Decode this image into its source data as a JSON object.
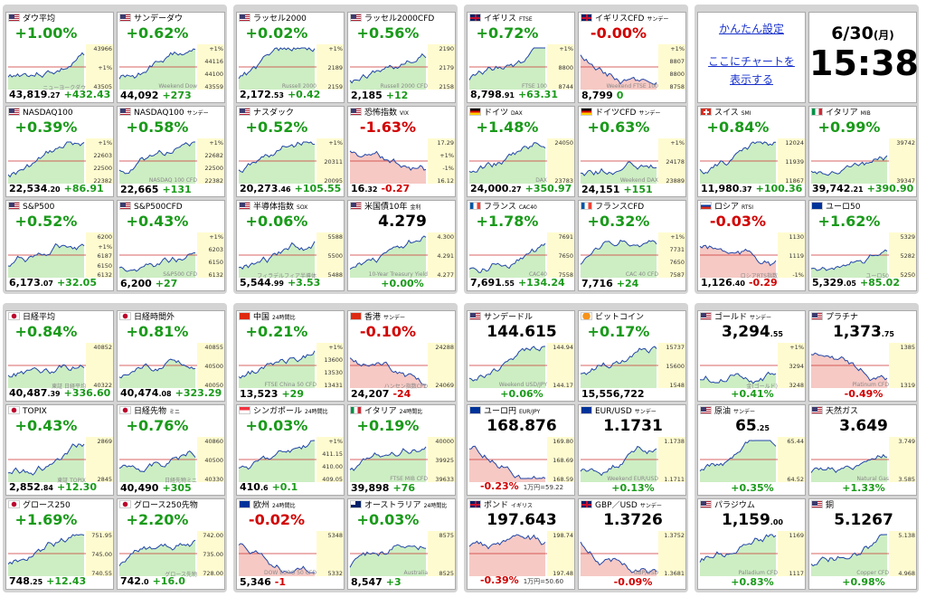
{
  "settings": {
    "easy": "かんたん設定",
    "chart": "ここにチャートを表示する"
  },
  "clock": {
    "date": "6/30(月)",
    "time": "15:38"
  },
  "panels": [
    {
      "tiles": [
        {
          "kind": "index",
          "flag": "us",
          "name": "ダウ平均",
          "change": "+1.00%",
          "axis": [
            "43966",
            "+1%",
            "43505"
          ],
          "wm": "ニューヨークダウ",
          "price": "43,819.27",
          "diff": "+432.43"
        },
        {
          "kind": "index",
          "flag": "us",
          "name": "サンデーダウ",
          "change": "+0.62%",
          "axis": [
            "+1%",
            "44116",
            "44100",
            "43559"
          ],
          "wm": "Weekend Dow",
          "price": "44,092",
          "diff": "+273"
        },
        {
          "kind": "index",
          "flag": "us",
          "name": "NASDAQ100",
          "change": "+0.39%",
          "axis": [
            "+1%",
            "22603",
            "22500",
            "22382"
          ],
          "price": "22,534.20",
          "diff": "+86.91"
        },
        {
          "kind": "index",
          "flag": "us",
          "name": "NASDAQ100",
          "sub": "サンデー",
          "change": "+0.58%",
          "axis": [
            "+1%",
            "22682",
            "22500",
            "22382"
          ],
          "wm": "NASDAQ 100 CFD",
          "price": "22,665",
          "diff": "+131"
        },
        {
          "kind": "index",
          "flag": "us",
          "name": "S&P500",
          "change": "+0.52%",
          "axis": [
            "6200",
            "+1%",
            "6187",
            "6150",
            "6132"
          ],
          "price": "6,173.07",
          "diff": "+32.05"
        },
        {
          "kind": "index",
          "flag": "us",
          "name": "S&P500CFD",
          "change": "+0.43%",
          "axis": [
            "+1%",
            "6203",
            "6150",
            "6132"
          ],
          "wm": "S&P500 CFD",
          "price": "6,200",
          "diff": "+27"
        }
      ]
    },
    {
      "tiles": [
        {
          "kind": "index",
          "flag": "us",
          "name": "ラッセル2000",
          "change": "+0.02%",
          "axis": [
            "+1%",
            "2189",
            "2159"
          ],
          "wm": "Russell 2000",
          "price": "2,172.53",
          "diff": "+0.42"
        },
        {
          "kind": "index",
          "flag": "us",
          "name": "ラッセル2000CFD",
          "change": "+0.56%",
          "axis": [
            "2190",
            "2179",
            "2158"
          ],
          "wm": "Russell 2000 CFD",
          "price": "2,185",
          "diff": "+12"
        },
        {
          "kind": "index",
          "flag": "us",
          "name": "ナスダック",
          "change": "+0.52%",
          "axis": [
            "+1%",
            "20311",
            "20095"
          ],
          "price": "20,273.46",
          "diff": "+105.55"
        },
        {
          "kind": "index",
          "flag": "us",
          "name": "恐怖指数",
          "sub": "VIX",
          "change": "-1.63%",
          "axis": [
            "17.29",
            "+1%",
            "-1%",
            "16.12"
          ],
          "price": "16.32",
          "diff": "-0.27"
        },
        {
          "kind": "index",
          "flag": "us",
          "name": "半導体指数",
          "sub": "SOX",
          "change": "+0.06%",
          "axis": [
            "5588",
            "5500",
            "5488"
          ],
          "wm": "フィラデルフィア半導体",
          "price": "5,544.99",
          "diff": "+3.53"
        },
        {
          "kind": "quote",
          "flag": "us",
          "name": "米国債10年",
          "sub": "金利",
          "value": "4.279",
          "axis": [
            "4.300",
            "4.291",
            "4.277"
          ],
          "wm": "10-Year Treasury Yield",
          "change": "+0.00%"
        }
      ]
    },
    {
      "tiles": [
        {
          "kind": "index",
          "flag": "uk",
          "name": "イギリス",
          "sub": "FTSE",
          "change": "+0.72%",
          "axis": [
            "+1%",
            "8800",
            "8744"
          ],
          "wm": "FTSE 100",
          "price": "8,798.91",
          "diff": "+63.31"
        },
        {
          "kind": "index",
          "flag": "uk",
          "name": "イギリスCFD",
          "sub": "サンデー",
          "change": "-0.00%",
          "axis": [
            "+1%",
            "8807",
            "8800",
            "8758"
          ],
          "wm": "Weekend FTSE 100",
          "price": "8,799",
          "diff": "0"
        },
        {
          "kind": "index",
          "flag": "de",
          "name": "ドイツ",
          "sub": "DAX",
          "change": "+1.48%",
          "axis": [
            "24050",
            "23783"
          ],
          "wm": "DAX",
          "price": "24,000.27",
          "diff": "+350.97"
        },
        {
          "kind": "index",
          "flag": "de",
          "name": "ドイツCFD",
          "sub": "サンデー",
          "change": "+0.63%",
          "axis": [
            "+1%",
            "24178",
            "23889"
          ],
          "wm": "Weekend DAX",
          "price": "24,151",
          "diff": "+151"
        },
        {
          "kind": "index",
          "flag": "fr",
          "name": "フランス",
          "sub": "CAC40",
          "change": "+1.78%",
          "axis": [
            "7691",
            "7650",
            "7558"
          ],
          "wm": "CAC40",
          "price": "7,691.55",
          "diff": "+134.24"
        },
        {
          "kind": "index",
          "flag": "fr",
          "name": "フランスCFD",
          "change": "+0.32%",
          "axis": [
            "+1%",
            "7731",
            "7650",
            "7587"
          ],
          "wm": "CAC 40 CFD",
          "price": "7,716",
          "diff": "+24"
        }
      ]
    },
    {
      "tiles": [
        {
          "kind": "index",
          "flag": "ch",
          "name": "スイス",
          "sub": "SMI",
          "change": "+0.84%",
          "axis": [
            "12024",
            "11939",
            "11867"
          ],
          "price": "11,980.37",
          "diff": "+100.36"
        },
        {
          "kind": "index",
          "flag": "it",
          "name": "イタリア",
          "sub": "MIB",
          "change": "+0.99%",
          "axis": [
            "39742",
            "39347"
          ],
          "price": "39,742.21",
          "diff": "+390.90"
        },
        {
          "kind": "index",
          "flag": "ru",
          "name": "ロシア",
          "sub": "RTSI",
          "change": "-0.03%",
          "axis": [
            "1130",
            "1119",
            "-1%"
          ],
          "wm": "ロシアRTS指数",
          "price": "1,126.40",
          "diff": "-0.29"
        },
        {
          "kind": "index",
          "flag": "eu",
          "name": "ユーロ50",
          "change": "+1.62%",
          "axis": [
            "5329",
            "5282",
            "5250"
          ],
          "wm": "ユーロ50",
          "price": "5,329.05",
          "diff": "+85.02"
        }
      ]
    },
    {
      "tiles": [
        {
          "kind": "index",
          "flag": "jp",
          "name": "日経平均",
          "change": "+0.84%",
          "axis": [
            "40852",
            "40322"
          ],
          "wm": "東証 日経平均",
          "price": "40,487.39",
          "diff": "+336.60"
        },
        {
          "kind": "index",
          "flag": "jp",
          "name": "日経時間外",
          "change": "+0.81%",
          "axis": [
            "40855",
            "40500",
            "40050"
          ],
          "price": "40,474.08",
          "diff": "+323.29"
        },
        {
          "kind": "index",
          "flag": "jp",
          "name": "TOPIX",
          "change": "+0.43%",
          "axis": [
            "2869",
            "2845"
          ],
          "wm": "東証 TOPIX",
          "price": "2,852.84",
          "diff": "+12.30"
        },
        {
          "kind": "index",
          "flag": "jp",
          "name": "日経先物",
          "sub": "ミニ",
          "change": "+0.76%",
          "axis": [
            "40860",
            "40500",
            "40330"
          ],
          "wm": "日経先物ミニ",
          "price": "40,490",
          "diff": "+305"
        },
        {
          "kind": "index",
          "flag": "jp",
          "name": "グロース250",
          "change": "+1.69%",
          "axis": [
            "751.95",
            "745.00",
            "740.55"
          ],
          "price": "748.25",
          "diff": "+12.43"
        },
        {
          "kind": "index",
          "flag": "jp",
          "name": "グロース250先物",
          "change": "+2.20%",
          "axis": [
            "742.00",
            "735.00",
            "728.00"
          ],
          "wm": "グロース先物",
          "price": "742.0",
          "diff": "+16.0"
        }
      ]
    },
    {
      "tiles": [
        {
          "kind": "index",
          "flag": "cn",
          "name": "中国",
          "sub": "24時間比",
          "change": "+0.21%",
          "axis": [
            "+1%",
            "13600",
            "13530",
            "13431"
          ],
          "wm": "FTSE China 50 CFD",
          "price": "13,523",
          "diff": "+29"
        },
        {
          "kind": "index",
          "flag": "hk",
          "name": "香港",
          "sub": "サンデー",
          "change": "-0.10%",
          "axis": [
            "24288",
            "24069"
          ],
          "wm": "ハンセン指数CFD",
          "price": "24,207",
          "diff": "-24"
        },
        {
          "kind": "index",
          "flag": "sg",
          "name": "シンガポール",
          "sub": "24時間比",
          "change": "+0.03%",
          "axis": [
            "+1%",
            "411.15",
            "410.00",
            "409.05"
          ],
          "price": "410.6",
          "diff": "+0.1"
        },
        {
          "kind": "index",
          "flag": "it",
          "name": "イタリア",
          "sub": "24時間比",
          "change": "+0.19%",
          "axis": [
            "40000",
            "39925",
            "39633"
          ],
          "wm": "FTSE MIB CFD",
          "price": "39,898",
          "diff": "+76"
        },
        {
          "kind": "index",
          "flag": "eu",
          "name": "欧州",
          "sub": "24時間比",
          "change": "-0.02%",
          "axis": [
            "5348",
            "5332"
          ],
          "wm": "DOW EURO 50 CFD",
          "price": "5,346",
          "diff": "-1"
        },
        {
          "kind": "index",
          "flag": "au",
          "name": "オーストラリア",
          "sub": "24時間比",
          "change": "+0.03%",
          "axis": [
            "8575",
            "8525"
          ],
          "wm": "Australia",
          "price": "8,547",
          "diff": "+3"
        }
      ]
    },
    {
      "tiles": [
        {
          "kind": "quote",
          "flag": "us",
          "name": "サンデードル",
          "value": "144.615",
          "axis": [
            "144.94",
            "144.17"
          ],
          "wm": "Weekend USD/JPY",
          "change": "+0.06%"
        },
        {
          "kind": "index",
          "flag": "btc",
          "name": "ビットコイン",
          "change": "+0.17%",
          "axis": [
            "15737",
            "15600",
            "1548"
          ],
          "price": "15,556,722"
        },
        {
          "kind": "quote",
          "flag": "eu",
          "name": "ユーロ円",
          "sub": "EUR/JPY",
          "value": "168.876",
          "axis": [
            "169.80",
            "168.69",
            "168.59"
          ],
          "change": "-0.23%",
          "note": "1万円=59.22"
        },
        {
          "kind": "quote",
          "flag": "eu",
          "name": "EUR/USD",
          "sub": "サンデー",
          "value": "1.1731",
          "axis": [
            "1.1738",
            "1.1711"
          ],
          "wm": "Weekend EUR/USD",
          "change": "+0.13%"
        },
        {
          "kind": "quote",
          "flag": "uk",
          "name": "ポンド",
          "sub": "イギリス",
          "value": "197.643",
          "axis": [
            "198.74",
            "197.48"
          ],
          "change": "-0.39%",
          "note": "1万円=50.60"
        },
        {
          "kind": "quote",
          "flag": "uk",
          "name": "GBP／USD",
          "sub": "サンデー",
          "value": "1.3726",
          "axis": [
            "1.3752",
            "1.3681"
          ],
          "wm": "GBP/USD",
          "change": "-0.09%"
        }
      ]
    },
    {
      "tiles": [
        {
          "kind": "quote",
          "flag": "us",
          "name": "ゴールド",
          "sub": "サンデー",
          "value": "3,294.55",
          "axis": [
            "+1%",
            "3294",
            "3248"
          ],
          "wm": "金(ゴールド)",
          "change": "+0.41%"
        },
        {
          "kind": "quote",
          "flag": "us",
          "name": "プラチナ",
          "value": "1,373.75",
          "axis": [
            "1385",
            "1319"
          ],
          "wm": "Platinum CFD",
          "change": "-0.49%"
        },
        {
          "kind": "quote",
          "flag": "us",
          "name": "原油",
          "sub": "サンデー",
          "value": "65.25",
          "axis": [
            "65.44",
            "64.52"
          ],
          "change": "+0.35%"
        },
        {
          "kind": "quote",
          "flag": "us",
          "name": "天然ガス",
          "value": "3.649",
          "axis": [
            "3.749",
            "3.585"
          ],
          "wm": "Natural Gas",
          "change": "+1.33%"
        },
        {
          "kind": "quote",
          "flag": "us",
          "name": "パラジウム",
          "value": "1,159.00",
          "axis": [
            "1169",
            "1117"
          ],
          "wm": "Palladium CFD",
          "change": "+0.83%"
        },
        {
          "kind": "quote",
          "flag": "us",
          "name": "銅",
          "value": "5.1267",
          "axis": [
            "5.138",
            "4.968"
          ],
          "wm": "Copper CFD",
          "change": "+0.98%"
        }
      ]
    }
  ]
}
